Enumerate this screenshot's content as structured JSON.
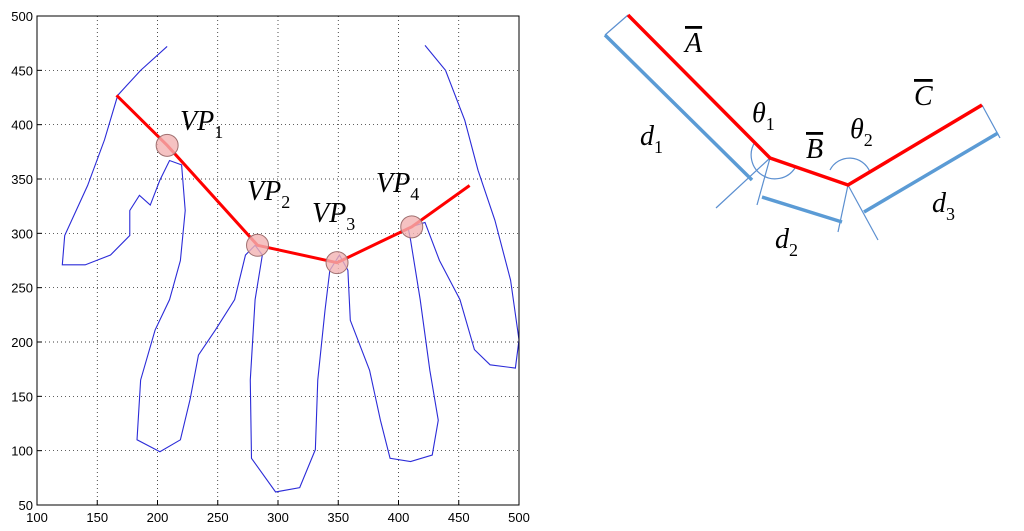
{
  "chart_data": {
    "type": "line",
    "xlim": [
      100,
      500
    ],
    "ylim": [
      50,
      500
    ],
    "xticks": [
      100,
      150,
      200,
      250,
      300,
      350,
      400,
      450,
      500
    ],
    "yticks": [
      50,
      100,
      150,
      200,
      250,
      300,
      350,
      400,
      450,
      500
    ],
    "grid": true,
    "series": [
      {
        "color": "#2b2bd8",
        "x": [
          208,
          186,
          167,
          156,
          142,
          123,
          121,
          140,
          161,
          177,
          177,
          185,
          194,
          202,
          210,
          220,
          223,
          219,
          210,
          198,
          186,
          183,
          202,
          219,
          227,
          234,
          248,
          264,
          273,
          281,
          287,
          281,
          277,
          278,
          298,
          318,
          331,
          333,
          339,
          343,
          351,
          358,
          360,
          376,
          385,
          393,
          410,
          428,
          433,
          426,
          418,
          410,
          408,
          422,
          434,
          451,
          463,
          476,
          497,
          500,
          493,
          480,
          466,
          455,
          439,
          422
        ],
        "y": [
          472,
          450,
          427,
          386,
          344,
          298,
          271,
          271,
          280,
          298,
          321,
          335,
          326,
          349,
          367,
          363,
          321,
          275,
          239,
          211,
          165,
          110,
          99,
          110,
          147,
          188,
          211,
          239,
          280,
          289,
          280,
          239,
          165,
          93,
          62,
          66,
          101,
          165,
          229,
          266,
          280,
          266,
          220,
          174,
          128,
          93,
          90,
          96,
          128,
          174,
          239,
          294,
          305,
          310,
          275,
          239,
          193,
          179,
          176,
          202,
          257,
          312,
          358,
          404,
          450,
          473
        ]
      },
      {
        "color": "#ff0000",
        "x": [
          166,
          208,
          283,
          349,
          411,
          459
        ],
        "y": [
          427,
          381,
          289,
          273,
          306,
          344
        ]
      }
    ],
    "points": {
      "x": [
        208,
        283,
        349,
        411
      ],
      "y": [
        381,
        289,
        273,
        306
      ],
      "color": "#f2b3b3"
    },
    "annotations": [
      {
        "text": "VP",
        "sub": "1"
      },
      {
        "text": "VP",
        "sub": "2"
      },
      {
        "text": "VP",
        "sub": "3"
      },
      {
        "text": "VP",
        "sub": "4"
      }
    ]
  },
  "diagram": {
    "labels": [
      {
        "text": "A"
      },
      {
        "text": "θ",
        "sub": "1"
      },
      {
        "text": "B"
      },
      {
        "text": "θ",
        "sub": "2"
      },
      {
        "text": "C"
      },
      {
        "text": "d",
        "sub": "1"
      },
      {
        "text": "d",
        "sub": "2"
      },
      {
        "text": "d",
        "sub": "3"
      }
    ]
  }
}
